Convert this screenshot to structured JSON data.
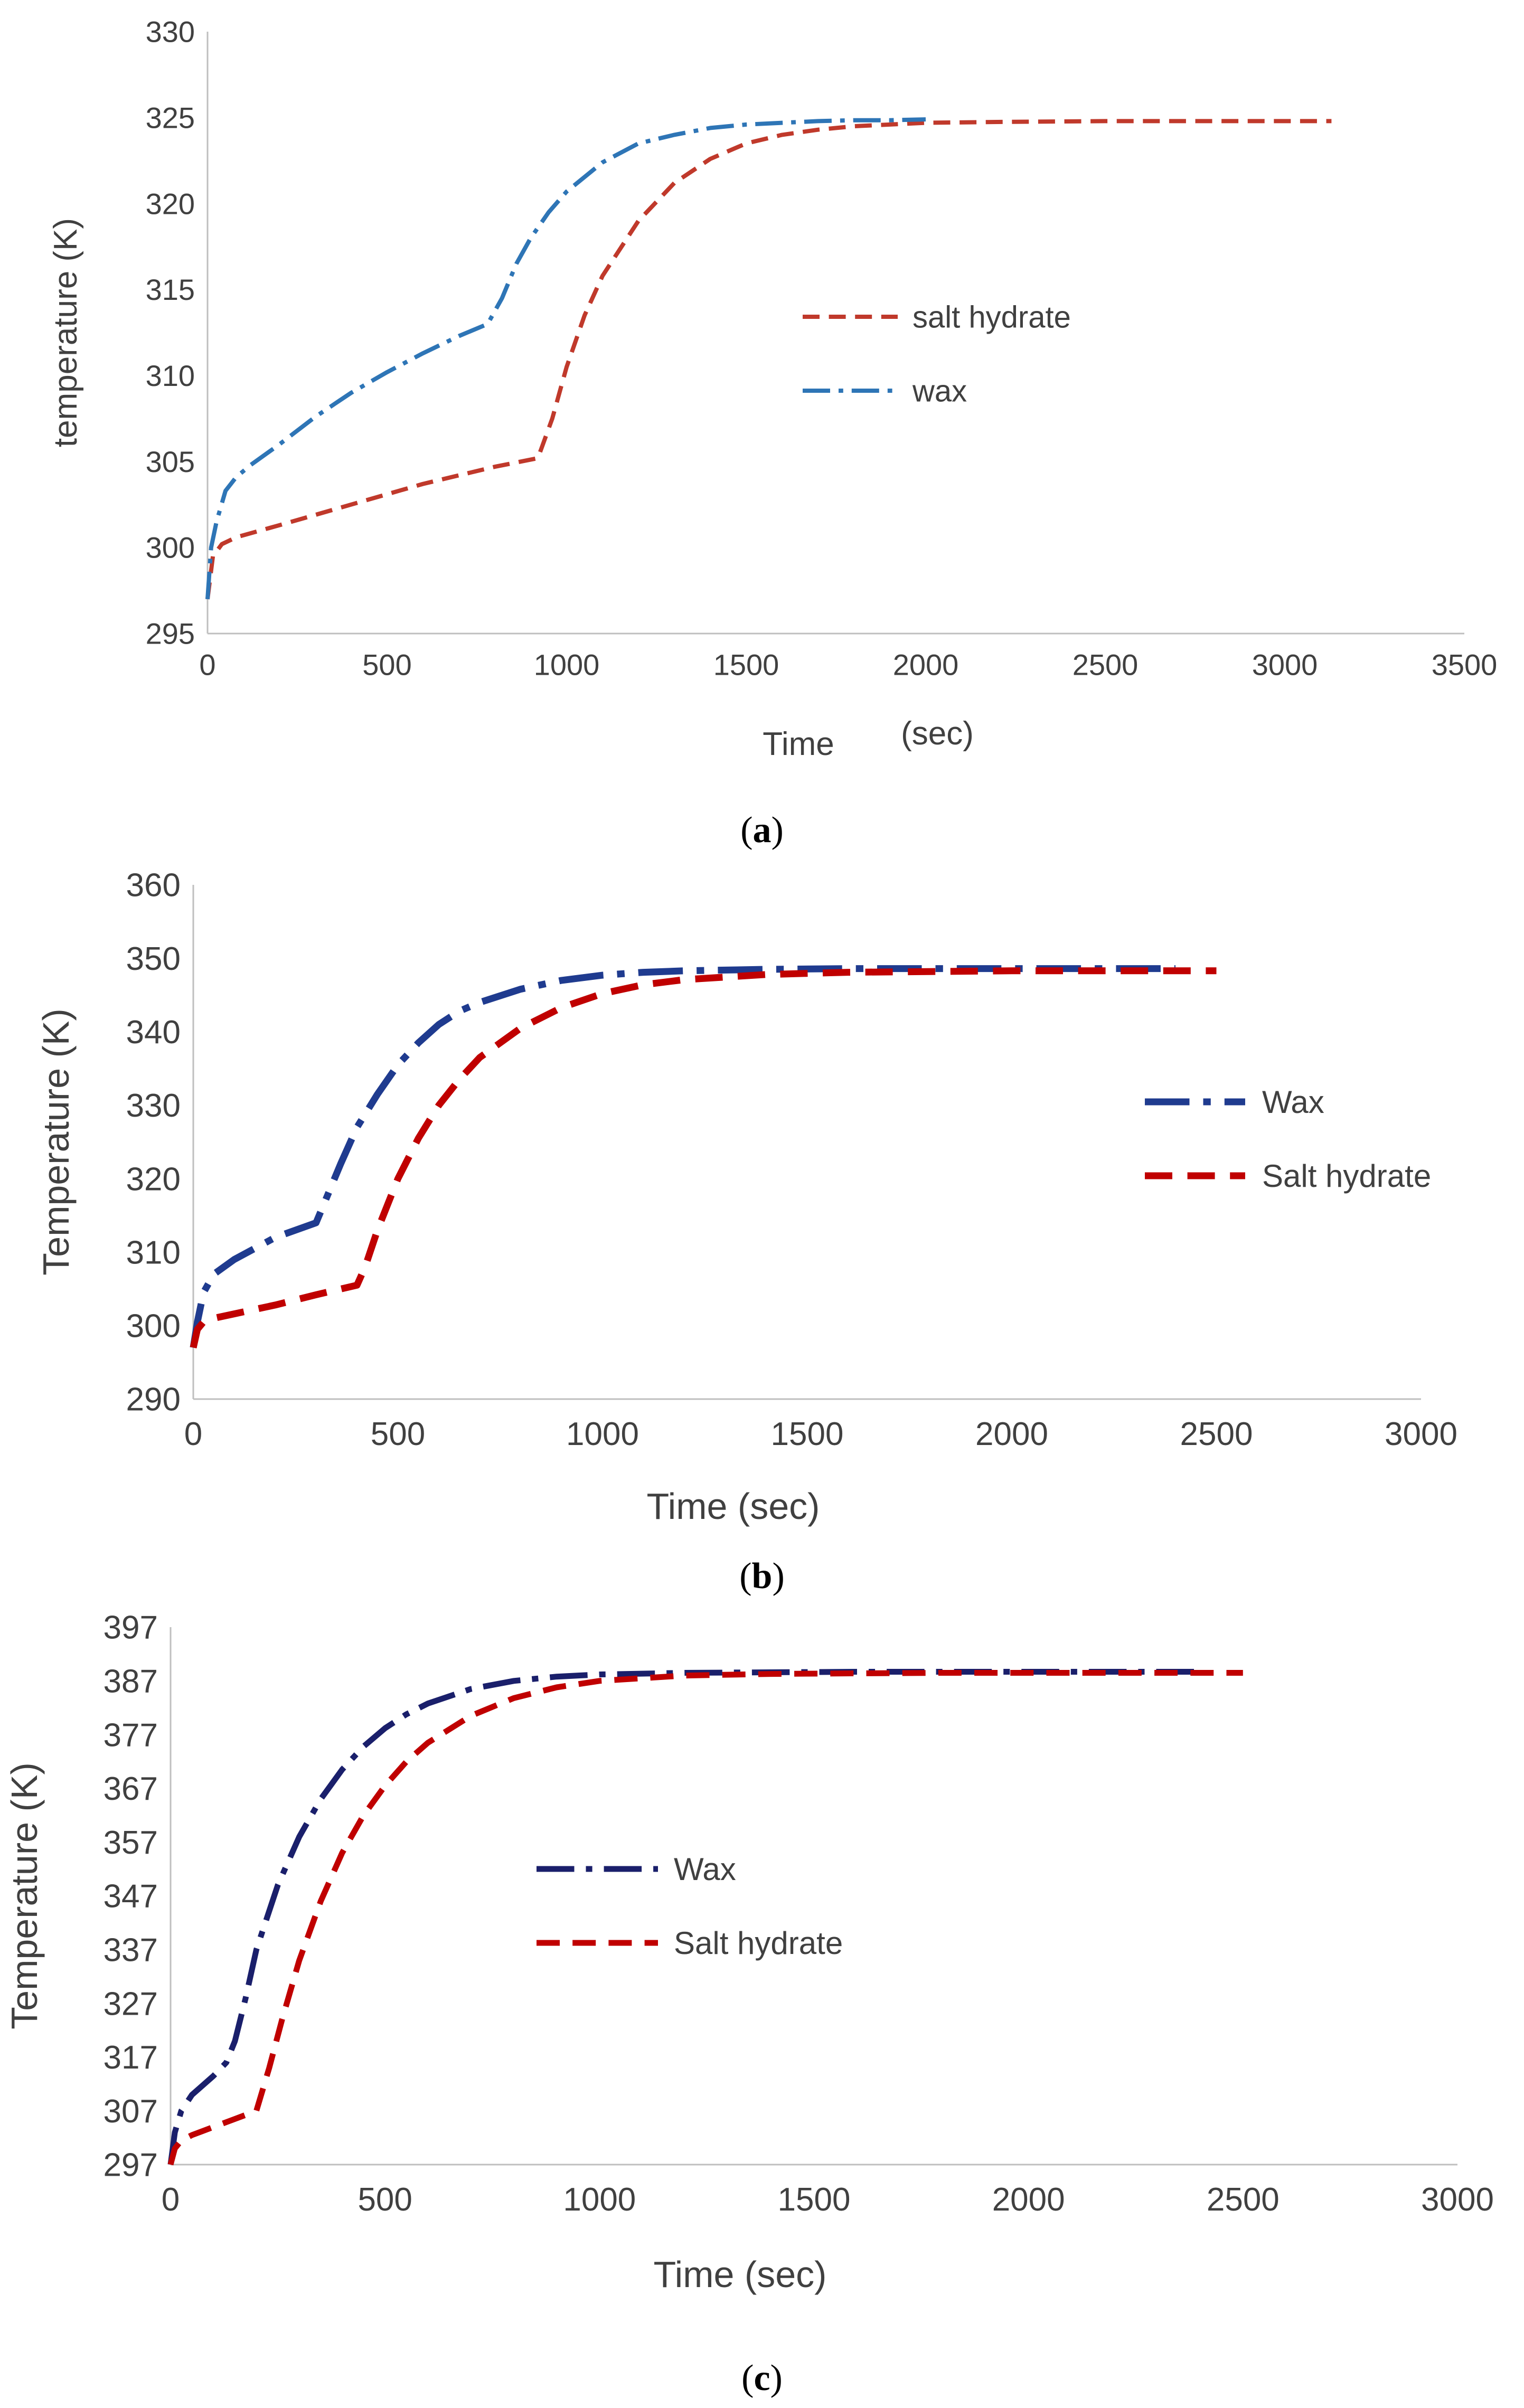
{
  "chart_data": [
    {
      "type": "line",
      "caption_letter": "a",
      "xlabel_part1": "Time",
      "xlabel_part2": "(sec)",
      "ylabel": "temperature (K)",
      "xlim": [
        0,
        3500
      ],
      "ylim": [
        295,
        330
      ],
      "xticks": [
        0,
        500,
        1000,
        1500,
        2000,
        2500,
        3000,
        3500
      ],
      "yticks": [
        295,
        300,
        305,
        310,
        315,
        320,
        325,
        330
      ],
      "legend": {
        "placement": "center-right",
        "order": [
          "salt hydrate",
          "wax"
        ]
      },
      "series": [
        {
          "name": "salt hydrate",
          "color": "#c0392b",
          "dash": "dashed",
          "x": [
            0,
            15,
            40,
            80,
            200,
            400,
            600,
            800,
            920,
            960,
            1000,
            1050,
            1100,
            1200,
            1300,
            1400,
            1500,
            1600,
            1700,
            1800,
            1900,
            2000,
            2200,
            2500,
            2800,
            3130
          ],
          "y": [
            297,
            299.5,
            300.2,
            300.6,
            301.3,
            302.5,
            303.7,
            304.7,
            305.2,
            307.5,
            310.5,
            313.5,
            315.8,
            319.0,
            321.2,
            322.6,
            323.5,
            324.0,
            324.3,
            324.5,
            324.6,
            324.7,
            324.75,
            324.8,
            324.8,
            324.8
          ]
        },
        {
          "name": "wax",
          "color": "#2e75b6",
          "dash": "dashdot",
          "x": [
            0,
            10,
            25,
            50,
            80,
            120,
            200,
            300,
            400,
            500,
            600,
            700,
            780,
            820,
            860,
            900,
            950,
            1000,
            1100,
            1200,
            1300,
            1400,
            1500,
            1600,
            1700,
            1800,
            1900,
            2000
          ],
          "y": [
            297,
            300,
            301.5,
            303.3,
            304.1,
            304.8,
            306.0,
            307.6,
            309.0,
            310.2,
            311.3,
            312.3,
            313.0,
            314.5,
            316.5,
            318.0,
            319.5,
            320.7,
            322.4,
            323.5,
            324.0,
            324.4,
            324.6,
            324.7,
            324.8,
            324.85,
            324.85,
            324.9
          ]
        }
      ]
    },
    {
      "type": "line",
      "caption_letter": "b",
      "xlabel": "Time (sec)",
      "ylabel": "Temperature (K)",
      "xlim": [
        0,
        3000
      ],
      "ylim": [
        290,
        360
      ],
      "xticks": [
        0,
        500,
        1000,
        1500,
        2000,
        2500,
        3000
      ],
      "yticks": [
        290,
        300,
        310,
        320,
        330,
        340,
        350,
        360
      ],
      "legend": {
        "placement": "center-right",
        "order": [
          "Wax",
          "Salt hydrate"
        ]
      },
      "series": [
        {
          "name": "Wax",
          "color": "#1f3b8f",
          "dash": "dashdot",
          "x": [
            0,
            10,
            25,
            50,
            100,
            200,
            300,
            330,
            360,
            400,
            450,
            500,
            550,
            600,
            650,
            700,
            800,
            900,
            1000,
            1100,
            1200,
            1400,
            1600,
            1800,
            2000,
            2200,
            2400
          ],
          "y": [
            297,
            300.5,
            304.5,
            307,
            309,
            312,
            314,
            318,
            322,
            327,
            331.5,
            335.5,
            338.5,
            341,
            342.8,
            344,
            345.8,
            347,
            347.7,
            348.1,
            348.3,
            348.5,
            348.6,
            348.6,
            348.6,
            348.6,
            348.6
          ]
        },
        {
          "name": "Salt hydrate",
          "color": "#c00000",
          "dash": "dashed",
          "x": [
            0,
            10,
            25,
            50,
            100,
            200,
            300,
            400,
            420,
            450,
            500,
            550,
            600,
            650,
            700,
            800,
            900,
            1000,
            1100,
            1200,
            1400,
            1600,
            1800,
            2000,
            2200,
            2500
          ],
          "y": [
            297,
            299.5,
            300.5,
            301,
            301.6,
            302.8,
            304.2,
            305.5,
            308,
            313,
            320,
            325.5,
            330,
            333.5,
            336.5,
            340.5,
            343.3,
            345.2,
            346.4,
            347.1,
            347.8,
            348.1,
            348.2,
            348.3,
            348.3,
            348.3
          ]
        }
      ]
    },
    {
      "type": "line",
      "caption_letter": "c",
      "xlabel": "Time (sec)",
      "ylabel": "Temperature (K)",
      "xlim": [
        0,
        3000
      ],
      "ylim": [
        297,
        397
      ],
      "xticks": [
        0,
        500,
        1000,
        1500,
        2000,
        2500,
        3000
      ],
      "yticks": [
        297,
        307,
        317,
        327,
        337,
        347,
        357,
        367,
        377,
        387,
        397
      ],
      "legend": {
        "placement": "center-left",
        "order": [
          "Wax",
          "Salt hydrate"
        ]
      },
      "series": [
        {
          "name": "Wax",
          "color": "#1a1f6b",
          "dash": "dashdot",
          "x": [
            0,
            10,
            25,
            50,
            100,
            130,
            150,
            175,
            200,
            250,
            300,
            350,
            400,
            450,
            500,
            550,
            600,
            700,
            800,
            900,
            1000,
            1200,
            1400,
            1600,
            1800,
            2000,
            2200,
            2400
          ],
          "y": [
            297,
            303,
            307,
            310,
            313.5,
            316,
            320,
            328,
            337,
            349,
            358,
            365,
            370.5,
            374.8,
            378.2,
            380.8,
            382.8,
            385.5,
            387,
            387.8,
            388.2,
            388.5,
            388.6,
            388.7,
            388.7,
            388.7,
            388.7,
            388.7
          ]
        },
        {
          "name": "Salt hydrate",
          "color": "#c00000",
          "dash": "dashed",
          "x": [
            0,
            10,
            25,
            50,
            100,
            150,
            200,
            230,
            260,
            300,
            350,
            400,
            450,
            500,
            550,
            600,
            700,
            800,
            900,
            1000,
            1200,
            1400,
            1600,
            1800,
            2000,
            2200,
            2500
          ],
          "y": [
            297,
            300,
            301.5,
            302.5,
            304,
            305.5,
            307,
            315,
            324,
            335,
            346,
            355,
            362,
            367.5,
            372,
            375.5,
            380.5,
            383.8,
            385.8,
            387,
            388,
            388.3,
            388.4,
            388.5,
            388.5,
            388.5,
            388.5
          ]
        }
      ]
    }
  ]
}
